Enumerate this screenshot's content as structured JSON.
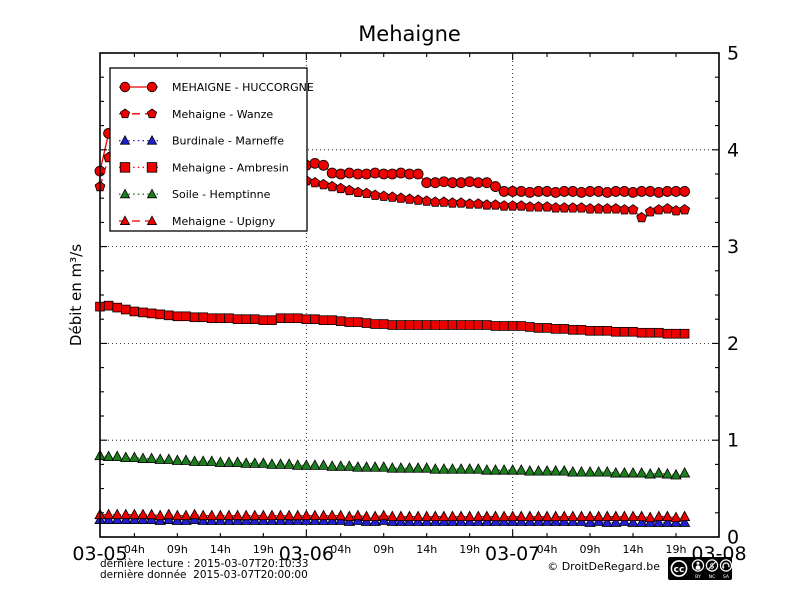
{
  "title": "Mehaigne",
  "ylabel": "Débit en m³/s",
  "footer": {
    "line1": "dernière lecture : 2015-03-07T20:10:33",
    "line2": "dernière donnée  2015-03-07T20:00:00",
    "credit": "© DroitDeRegard.be",
    "cc_circle_text": "cc",
    "cc_labels": [
      "BY",
      "NC",
      "SA"
    ]
  },
  "chart_data": {
    "type": "line",
    "title": "Mehaigne",
    "ylabel": "Débit en m³/s",
    "ylim": [
      0,
      5
    ],
    "xlim_hours": [
      0,
      72
    ],
    "grid": {
      "horizontal": [
        1,
        2,
        3,
        4
      ],
      "vertical_hours": [
        24,
        48
      ]
    },
    "legend_position": "upper left",
    "y_major_ticks": [
      "0",
      "1",
      "2",
      "3",
      "4",
      "5"
    ],
    "y_minor_step": 0.25,
    "x_major_ticks": [
      {
        "t": 0,
        "label": "03-05"
      },
      {
        "t": 24,
        "label": "03-06"
      },
      {
        "t": 48,
        "label": "03-07"
      },
      {
        "t": 72,
        "label": "03-08"
      }
    ],
    "x_minor_ticks": [
      {
        "t": 4,
        "label": "04h"
      },
      {
        "t": 9,
        "label": "09h"
      },
      {
        "t": 14,
        "label": "14h"
      },
      {
        "t": 19,
        "label": "19h"
      },
      {
        "t": 28,
        "label": "04h"
      },
      {
        "t": 33,
        "label": "09h"
      },
      {
        "t": 38,
        "label": "14h"
      },
      {
        "t": 43,
        "label": "19h"
      },
      {
        "t": 52,
        "label": "04h"
      },
      {
        "t": 57,
        "label": "09h"
      },
      {
        "t": 62,
        "label": "14h"
      },
      {
        "t": 67,
        "label": "19h"
      }
    ],
    "x_hours": [
      0,
      1,
      2,
      3,
      4,
      5,
      6,
      7,
      8,
      9,
      10,
      11,
      12,
      13,
      14,
      15,
      16,
      17,
      18,
      19,
      20,
      21,
      22,
      23,
      24,
      25,
      26,
      27,
      28,
      29,
      30,
      31,
      32,
      33,
      34,
      35,
      36,
      37,
      38,
      39,
      40,
      41,
      42,
      43,
      44,
      45,
      46,
      47,
      48,
      49,
      50,
      51,
      52,
      53,
      54,
      55,
      56,
      57,
      58,
      59,
      60,
      61,
      62,
      63,
      64,
      65,
      66,
      67,
      68
    ],
    "series": [
      {
        "name": "MEHAIGNE - HUCCORGNE",
        "color": "#ee0000",
        "marker": "circle",
        "line": "solid",
        "values": [
          3.78,
          4.17,
          4.02,
          3.96,
          3.95,
          3.94,
          3.93,
          3.92,
          3.91,
          3.91,
          3.9,
          3.9,
          3.89,
          3.89,
          3.88,
          3.88,
          3.87,
          3.87,
          3.86,
          3.86,
          3.85,
          3.85,
          3.84,
          3.62,
          3.84,
          3.86,
          3.84,
          3.76,
          3.75,
          3.76,
          3.75,
          3.75,
          3.76,
          3.75,
          3.75,
          3.76,
          3.75,
          3.75,
          3.66,
          3.66,
          3.67,
          3.66,
          3.66,
          3.67,
          3.66,
          3.66,
          3.62,
          3.57,
          3.57,
          3.57,
          3.56,
          3.57,
          3.57,
          3.56,
          3.57,
          3.57,
          3.56,
          3.57,
          3.57,
          3.56,
          3.57,
          3.57,
          3.56,
          3.57,
          3.57,
          3.56,
          3.57,
          3.57,
          3.57
        ]
      },
      {
        "name": "Mehaigne - Wanze",
        "color": "#ee0000",
        "marker": "pentagon",
        "line": "dashed",
        "values": [
          3.62,
          3.92,
          3.78,
          3.72,
          3.71,
          3.71,
          3.7,
          3.7,
          3.7,
          3.7,
          3.69,
          3.69,
          3.69,
          3.69,
          3.68,
          3.68,
          3.68,
          3.68,
          3.68,
          3.68,
          3.69,
          3.69,
          3.69,
          3.69,
          3.68,
          3.66,
          3.64,
          3.62,
          3.6,
          3.58,
          3.56,
          3.55,
          3.53,
          3.52,
          3.51,
          3.5,
          3.49,
          3.48,
          3.47,
          3.46,
          3.46,
          3.45,
          3.45,
          3.44,
          3.44,
          3.43,
          3.43,
          3.42,
          3.42,
          3.42,
          3.41,
          3.41,
          3.41,
          3.4,
          3.4,
          3.4,
          3.4,
          3.39,
          3.39,
          3.39,
          3.39,
          3.38,
          3.38,
          3.3,
          3.36,
          3.38,
          3.39,
          3.37,
          3.38
        ]
      },
      {
        "name": "Burdinale - Marneffe",
        "color": "#2020d0",
        "marker": "triangle",
        "line": "dotted",
        "values": [
          0.18,
          0.18,
          0.18,
          0.18,
          0.18,
          0.18,
          0.18,
          0.17,
          0.18,
          0.17,
          0.17,
          0.18,
          0.17,
          0.17,
          0.17,
          0.17,
          0.17,
          0.17,
          0.17,
          0.17,
          0.17,
          0.17,
          0.17,
          0.17,
          0.17,
          0.17,
          0.17,
          0.17,
          0.17,
          0.16,
          0.17,
          0.16,
          0.16,
          0.17,
          0.16,
          0.16,
          0.16,
          0.16,
          0.16,
          0.16,
          0.16,
          0.16,
          0.16,
          0.16,
          0.16,
          0.16,
          0.16,
          0.16,
          0.16,
          0.16,
          0.16,
          0.16,
          0.16,
          0.16,
          0.16,
          0.16,
          0.16,
          0.15,
          0.16,
          0.15,
          0.15,
          0.16,
          0.15,
          0.15,
          0.15,
          0.15,
          0.15,
          0.15,
          0.15
        ]
      },
      {
        "name": "Mehaigne - Ambresin",
        "color": "#ee0000",
        "marker": "square",
        "line": "dotted",
        "values": [
          2.38,
          2.39,
          2.37,
          2.35,
          2.33,
          2.32,
          2.31,
          2.3,
          2.29,
          2.28,
          2.28,
          2.27,
          2.27,
          2.26,
          2.26,
          2.26,
          2.25,
          2.25,
          2.25,
          2.24,
          2.24,
          2.26,
          2.26,
          2.26,
          2.25,
          2.25,
          2.24,
          2.24,
          2.23,
          2.22,
          2.22,
          2.21,
          2.2,
          2.2,
          2.19,
          2.19,
          2.19,
          2.19,
          2.19,
          2.19,
          2.19,
          2.19,
          2.19,
          2.19,
          2.19,
          2.19,
          2.18,
          2.18,
          2.18,
          2.18,
          2.17,
          2.16,
          2.16,
          2.15,
          2.15,
          2.14,
          2.14,
          2.13,
          2.13,
          2.13,
          2.12,
          2.12,
          2.12,
          2.11,
          2.11,
          2.11,
          2.1,
          2.1,
          2.1
        ]
      },
      {
        "name": "Soile - Hemptinne",
        "color": "#1e7d1e",
        "marker": "triangle",
        "line": "dotted",
        "values": [
          0.84,
          0.83,
          0.83,
          0.82,
          0.82,
          0.81,
          0.81,
          0.8,
          0.8,
          0.79,
          0.79,
          0.78,
          0.78,
          0.78,
          0.77,
          0.77,
          0.77,
          0.76,
          0.76,
          0.76,
          0.75,
          0.75,
          0.75,
          0.74,
          0.74,
          0.74,
          0.74,
          0.73,
          0.73,
          0.73,
          0.72,
          0.72,
          0.72,
          0.72,
          0.71,
          0.71,
          0.71,
          0.71,
          0.71,
          0.7,
          0.7,
          0.7,
          0.7,
          0.7,
          0.7,
          0.69,
          0.69,
          0.69,
          0.69,
          0.69,
          0.68,
          0.68,
          0.68,
          0.68,
          0.68,
          0.67,
          0.67,
          0.67,
          0.67,
          0.67,
          0.66,
          0.66,
          0.66,
          0.66,
          0.65,
          0.66,
          0.65,
          0.64,
          0.66
        ]
      },
      {
        "name": "Mehaigne - Upigny",
        "color": "#ee0000",
        "marker": "triangle",
        "line": "dashed",
        "values": [
          0.23,
          0.23,
          0.23,
          0.23,
          0.23,
          0.23,
          0.23,
          0.22,
          0.23,
          0.22,
          0.22,
          0.23,
          0.22,
          0.22,
          0.22,
          0.22,
          0.22,
          0.22,
          0.22,
          0.22,
          0.22,
          0.22,
          0.22,
          0.22,
          0.22,
          0.22,
          0.22,
          0.22,
          0.22,
          0.21,
          0.22,
          0.21,
          0.21,
          0.22,
          0.21,
          0.21,
          0.21,
          0.21,
          0.21,
          0.21,
          0.21,
          0.21,
          0.21,
          0.21,
          0.21,
          0.21,
          0.21,
          0.21,
          0.21,
          0.21,
          0.21,
          0.21,
          0.21,
          0.21,
          0.21,
          0.21,
          0.21,
          0.21,
          0.21,
          0.21,
          0.21,
          0.21,
          0.21,
          0.21,
          0.2,
          0.21,
          0.21,
          0.2,
          0.21
        ]
      }
    ]
  }
}
